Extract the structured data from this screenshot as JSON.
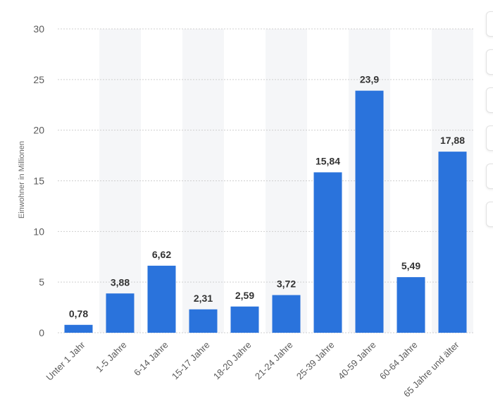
{
  "chart_data": {
    "type": "bar",
    "categories": [
      "Unter 1 Jahr",
      "1-5 Jahre",
      "6-14 Jahre",
      "15-17 Jahre",
      "18-20 Jahre",
      "21-24 Jahre",
      "25-39 Jahre",
      "40-59 Jahre",
      "60-64 Jahre",
      "65 Jahre und älter"
    ],
    "values": [
      0.78,
      3.88,
      6.62,
      2.31,
      2.59,
      3.72,
      15.84,
      23.9,
      5.49,
      17.88
    ],
    "value_labels": [
      "0,78",
      "3,88",
      "6,62",
      "2,31",
      "2,59",
      "3,72",
      "15,84",
      "23,9",
      "5,49",
      "17,88"
    ],
    "ylabel": "Einwohner in Millionen",
    "ylim": [
      0,
      30
    ],
    "yticks": [
      0,
      5,
      10,
      15,
      20,
      25,
      30
    ],
    "grid": true,
    "bar_color": "#2a73dc",
    "band_color": "#f5f6f8",
    "grid_color": "#cfcfcf"
  }
}
